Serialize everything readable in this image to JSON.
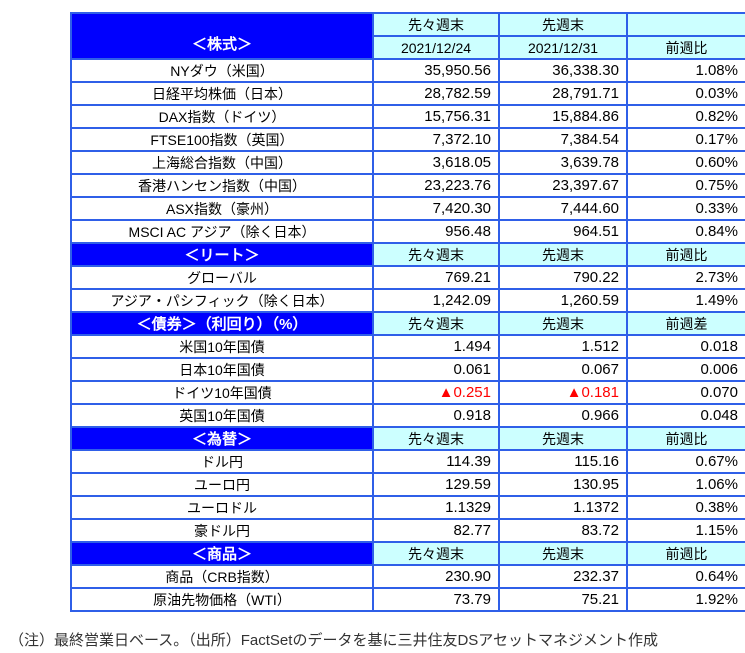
{
  "colors": {
    "section_bg": "#0000FE",
    "header_bg": "#CCFFFF",
    "border": "#2F5FE8",
    "negative": "#FF0000"
  },
  "table": {
    "sections": [
      {
        "title": "＜株式＞",
        "header_top": [
          "先々週末",
          "先週末",
          ""
        ],
        "header_bottom": [
          "2021/12/24",
          "2021/12/31",
          "前週比"
        ],
        "rows": [
          [
            "NYダウ（米国）",
            "35,950.56",
            "36,338.30",
            "1.08%"
          ],
          [
            "日経平均株価（日本）",
            "28,782.59",
            "28,791.71",
            "0.03%"
          ],
          [
            "DAX指数（ドイツ）",
            "15,756.31",
            "15,884.86",
            "0.82%"
          ],
          [
            "FTSE100指数（英国）",
            "7,372.10",
            "7,384.54",
            "0.17%"
          ],
          [
            "上海総合指数（中国）",
            "3,618.05",
            "3,639.78",
            "0.60%"
          ],
          [
            "香港ハンセン指数（中国）",
            "23,223.76",
            "23,397.67",
            "0.75%"
          ],
          [
            "ASX指数（豪州）",
            "7,420.30",
            "7,444.60",
            "0.33%"
          ],
          [
            "MSCI AC アジア（除く日本）",
            "956.48",
            "964.51",
            "0.84%"
          ]
        ]
      },
      {
        "title": "＜リート＞",
        "headers": [
          "先々週末",
          "先週末",
          "前週比"
        ],
        "rows": [
          [
            "グローバル",
            "769.21",
            "790.22",
            "2.73%"
          ],
          [
            "アジア・パシフィック（除く日本）",
            "1,242.09",
            "1,260.59",
            "1.49%"
          ]
        ]
      },
      {
        "title": "＜債券＞（利回り）（%）",
        "headers": [
          "先々週末",
          "先週末",
          "前週差"
        ],
        "rows": [
          [
            "米国10年国債",
            "1.494",
            "1.512",
            "0.018"
          ],
          [
            "日本10年国債",
            "0.061",
            "0.067",
            "0.006"
          ],
          [
            "ドイツ10年国債",
            "▲0.251",
            "▲0.181",
            "0.070"
          ],
          [
            "英国10年国債",
            "0.918",
            "0.966",
            "0.048"
          ]
        ]
      },
      {
        "title": "＜為替＞",
        "headers": [
          "先々週末",
          "先週末",
          "前週比"
        ],
        "rows": [
          [
            "ドル円",
            "114.39",
            "115.16",
            "0.67%"
          ],
          [
            "ユーロ円",
            "129.59",
            "130.95",
            "1.06%"
          ],
          [
            "ユーロドル",
            "1.1329",
            "1.1372",
            "0.38%"
          ],
          [
            "豪ドル円",
            "82.77",
            "83.72",
            "1.15%"
          ]
        ]
      },
      {
        "title": "＜商品＞",
        "headers": [
          "先々週末",
          "先週末",
          "前週比"
        ],
        "rows": [
          [
            "商品（CRB指数）",
            "230.90",
            "232.37",
            "0.64%"
          ],
          [
            "原油先物価格（WTI）",
            "73.79",
            "75.21",
            "1.92%"
          ]
        ]
      }
    ]
  },
  "footer_note": "（注）最終営業日ベース。（出所）FactSetのデータを基に三井住友DSアセットマネジメント作成"
}
